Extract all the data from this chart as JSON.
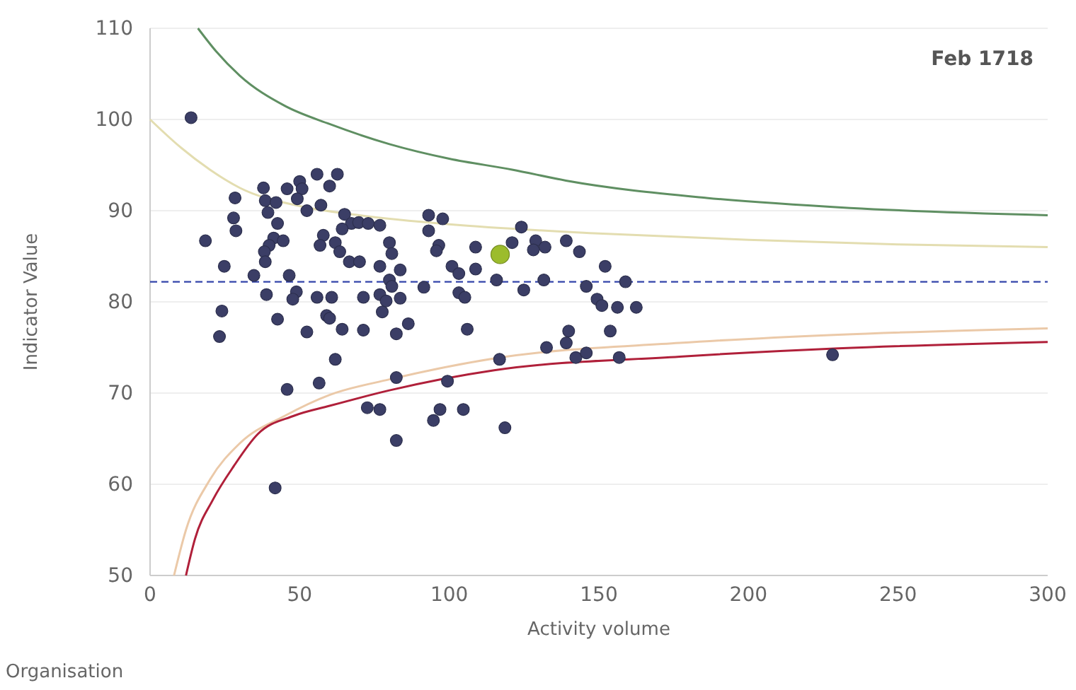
{
  "chart_data": {
    "type": "scatter",
    "xlabel": "Activity volume",
    "ylabel": "Indicator Value",
    "annotations": [
      "Feb 1718",
      "Organisation"
    ],
    "xlim": [
      0,
      300
    ],
    "xticks": [
      0,
      50,
      100,
      150,
      200,
      250,
      300
    ],
    "ylim": [
      50,
      110
    ],
    "yticks": [
      50,
      60,
      70,
      80,
      90,
      100,
      110
    ],
    "grid": "y",
    "ref_lines": [
      {
        "axis": "y",
        "value": 82.2,
        "color": "#3344aa",
        "line_style": "dashed"
      }
    ],
    "series": [
      {
        "type": "line",
        "color": "#5f8f62",
        "x": [
          16,
          22,
          30,
          45,
          60,
          80,
          100,
          121,
          139,
          186,
          234,
          300
        ],
        "values": [
          110,
          107.5,
          104.8,
          101.5,
          99.5,
          97.3,
          95.7,
          94.5,
          93.3,
          91.4,
          90.3,
          89.5
        ]
      },
      {
        "type": "line",
        "color": "#e3ddb0",
        "x": [
          0,
          10,
          20,
          30,
          50,
          70,
          100,
          150,
          200,
          250,
          300
        ],
        "values": [
          100,
          97,
          94.5,
          92.5,
          90.5,
          89.5,
          88.5,
          87.5,
          86.8,
          86.3,
          86
        ]
      },
      {
        "type": "line",
        "color": "#ebc9a8",
        "x": [
          8,
          12,
          20,
          30,
          45,
          60,
          80,
          115,
          177,
          230,
          300
        ],
        "values": [
          50,
          55,
          60.5,
          64.5,
          67.5,
          69.8,
          71.5,
          73.8,
          75.5,
          76.4,
          77.1
        ]
      },
      {
        "type": "line",
        "color": "#b0203a",
        "x": [
          12,
          15,
          21,
          28,
          36,
          48,
          60,
          80,
          115,
          177,
          230,
          300
        ],
        "values": [
          50,
          54,
          58.3,
          62,
          65.5,
          67.5,
          68.6,
          70.3,
          72.5,
          74,
          74.9,
          75.6
        ]
      },
      {
        "marker": "circle",
        "color": "#3b3e66",
        "x": [
          13.7,
          55.8,
          62.6,
          60.0,
          37.9,
          45.8,
          50.0,
          50.8,
          28.4,
          38.5,
          42.1,
          49.2,
          52.4,
          57.1,
          39.4,
          27.9,
          42.6,
          28.7,
          41.3,
          44.5,
          39.8,
          38.2,
          18.5,
          65.0,
          67.3,
          69.7,
          64.2,
          57.9,
          56.8,
          61.9,
          63.4,
          66.6,
          70.0,
          24.8,
          38.5,
          34.7,
          46.5,
          38.9,
          48.9,
          47.7,
          55.8,
          60.7,
          71.3,
          24.0,
          42.6,
          59.0,
          60.0,
          52.4,
          64.2,
          71.3,
          23.2,
          61.9,
          45.8,
          56.5,
          72.6,
          41.8,
          72.9,
          76.8,
          93.1,
          97.8,
          93.1,
          80.0,
          96.5,
          95.7,
          80.8,
          76.8,
          83.6,
          100.9,
          103.2,
          108.8,
          108.8,
          124.1,
          121.0,
          128.9,
          132.0,
          128.1,
          139.1,
          143.5,
          152.1,
          80.0,
          80.8,
          91.5,
          115.8,
          131.6,
          145.8,
          158.9,
          76.8,
          78.9,
          83.6,
          103.2,
          105.2,
          124.9,
          149.4,
          151.0,
          156.2,
          162.5,
          77.6,
          82.3,
          86.3,
          106.0,
          139.9,
          153.8,
          139.1,
          132.5,
          116.8,
          142.3,
          145.8,
          156.8,
          82.3,
          99.4,
          76.8,
          96.9,
          104.7,
          94.7,
          118.6,
          82.3,
          228.1
        ],
        "values": [
          100.2,
          94.0,
          94.0,
          92.7,
          92.5,
          92.4,
          93.2,
          92.4,
          91.4,
          91.1,
          90.9,
          91.3,
          90.0,
          90.6,
          89.8,
          89.2,
          88.6,
          87.8,
          87.0,
          86.7,
          86.2,
          85.5,
          86.7,
          89.6,
          88.6,
          88.7,
          88.0,
          87.3,
          86.2,
          86.5,
          85.5,
          84.4,
          84.4,
          83.9,
          84.4,
          82.9,
          82.9,
          80.8,
          81.1,
          80.3,
          80.5,
          80.5,
          80.5,
          79.0,
          78.1,
          78.5,
          78.2,
          76.7,
          77.0,
          76.9,
          76.2,
          73.7,
          70.4,
          71.1,
          68.4,
          59.6,
          88.6,
          88.4,
          89.5,
          89.1,
          87.8,
          86.5,
          86.2,
          85.6,
          85.3,
          83.9,
          83.5,
          83.9,
          83.1,
          86.0,
          83.6,
          88.2,
          86.5,
          86.7,
          86.0,
          85.7,
          86.7,
          85.5,
          83.9,
          82.4,
          81.7,
          81.6,
          82.4,
          82.4,
          81.7,
          82.2,
          80.8,
          80.1,
          80.4,
          81.0,
          80.5,
          81.3,
          80.3,
          79.6,
          79.4,
          79.4,
          78.9,
          76.5,
          77.6,
          77.0,
          76.8,
          76.8,
          75.5,
          75.0,
          73.7,
          73.9,
          74.4,
          73.9,
          71.7,
          71.3,
          68.2,
          68.2,
          68.2,
          67.0,
          66.2,
          64.8,
          74.2
        ]
      },
      {
        "type": "scatter",
        "marker": "circle",
        "color": "#9cbc2c",
        "x": [
          117.0
        ],
        "values": [
          85.2
        ]
      }
    ]
  }
}
